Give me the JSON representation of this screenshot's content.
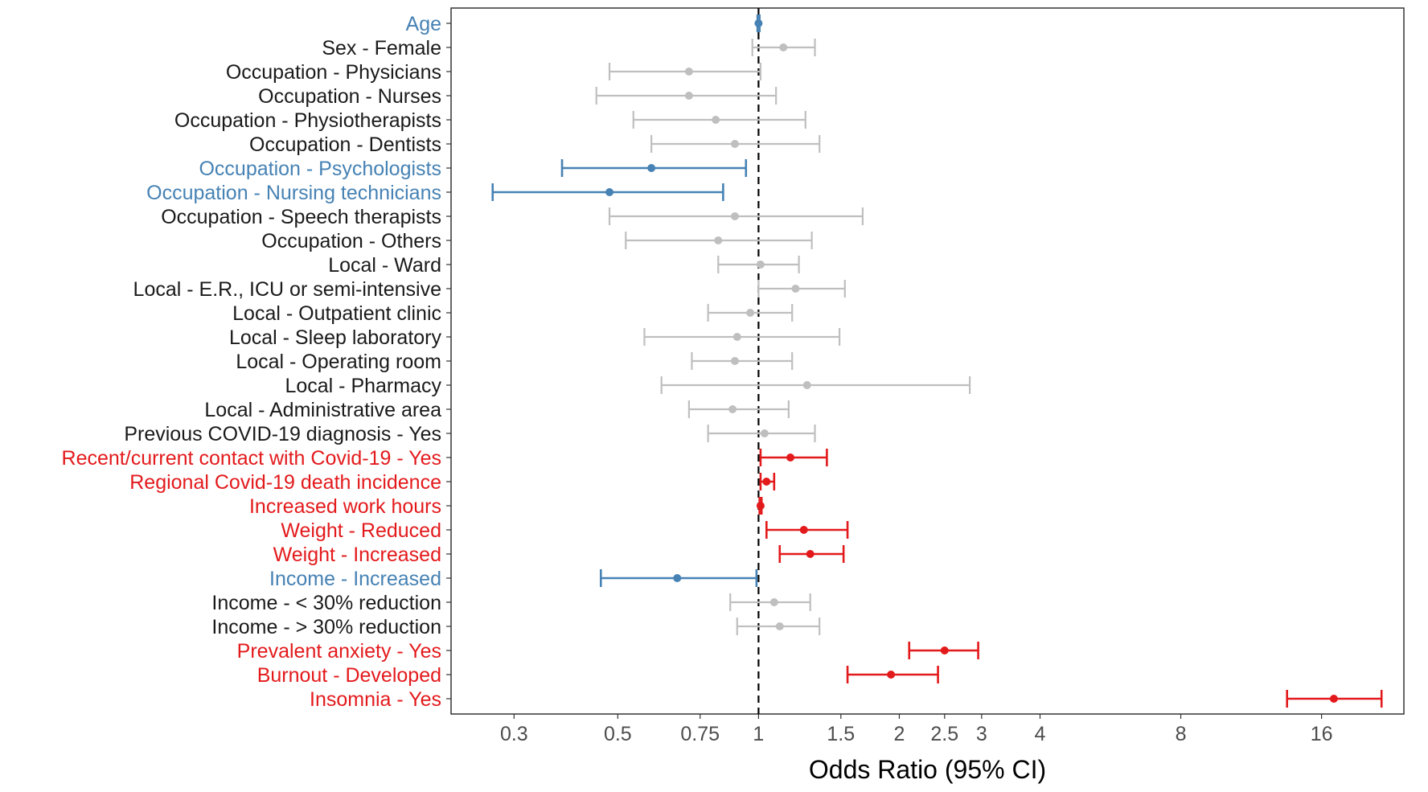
{
  "colors": {
    "significant_risk": "#e31a1c",
    "significant_protective": "#4682b4",
    "not_significant": "#bfbfbf",
    "not_significant_label": "#1a1a1a",
    "reference_line": "#000000",
    "panel_border": "#333333"
  },
  "chart_data": {
    "type": "forest",
    "xlabel": "Odds Ratio (95% CI)",
    "x_scale": "log",
    "xlim": [
      0.22,
      24
    ],
    "x_ticks": [
      0.3,
      0.5,
      0.75,
      1,
      1.5,
      2,
      2.5,
      3,
      4,
      8,
      16
    ],
    "x_tick_labels": [
      "0.3",
      "0.5",
      "0.75",
      "1",
      "1.5",
      "2",
      "2.5",
      "3",
      "4",
      "8",
      "16"
    ],
    "reference_line": 1,
    "grid": false,
    "rows": [
      {
        "label": "Age",
        "or": 1.0,
        "lo": 0.995,
        "hi": 1.005,
        "group": "significant_protective"
      },
      {
        "label": "Sex - Female",
        "or": 1.13,
        "lo": 0.97,
        "hi": 1.32,
        "group": "not_significant"
      },
      {
        "label": "Occupation - Physicians",
        "or": 0.71,
        "lo": 0.48,
        "hi": 1.01,
        "group": "not_significant"
      },
      {
        "label": "Occupation - Nurses",
        "or": 0.71,
        "lo": 0.45,
        "hi": 1.09,
        "group": "not_significant"
      },
      {
        "label": "Occupation - Physiotherapists",
        "or": 0.81,
        "lo": 0.54,
        "hi": 1.26,
        "group": "not_significant"
      },
      {
        "label": "Occupation - Dentists",
        "or": 0.89,
        "lo": 0.59,
        "hi": 1.35,
        "group": "not_significant"
      },
      {
        "label": "Occupation - Psychologists",
        "or": 0.59,
        "lo": 0.38,
        "hi": 0.94,
        "group": "significant_protective"
      },
      {
        "label": "Occupation - Nursing technicians",
        "or": 0.48,
        "lo": 0.27,
        "hi": 0.84,
        "group": "significant_protective"
      },
      {
        "label": "Occupation - Speech therapists",
        "or": 0.89,
        "lo": 0.48,
        "hi": 1.67,
        "group": "not_significant"
      },
      {
        "label": "Occupation - Others",
        "or": 0.82,
        "lo": 0.52,
        "hi": 1.3,
        "group": "not_significant"
      },
      {
        "label": "Local - Ward",
        "or": 1.01,
        "lo": 0.82,
        "hi": 1.22,
        "group": "not_significant"
      },
      {
        "label": "Local - E.R., ICU or semi-intensive",
        "or": 1.2,
        "lo": 1.0,
        "hi": 1.53,
        "group": "not_significant"
      },
      {
        "label": "Local - Outpatient clinic",
        "or": 0.96,
        "lo": 0.78,
        "hi": 1.18,
        "group": "not_significant"
      },
      {
        "label": "Local - Sleep laboratory",
        "or": 0.9,
        "lo": 0.57,
        "hi": 1.49,
        "group": "not_significant"
      },
      {
        "label": "Local - Operating room",
        "or": 0.89,
        "lo": 0.72,
        "hi": 1.18,
        "group": "not_significant"
      },
      {
        "label": "Local - Pharmacy",
        "or": 1.27,
        "lo": 0.62,
        "hi": 2.83,
        "group": "not_significant"
      },
      {
        "label": "Local - Administrative area",
        "or": 0.88,
        "lo": 0.71,
        "hi": 1.16,
        "group": "not_significant"
      },
      {
        "label": "Previous COVID-19 diagnosis - Yes",
        "or": 1.03,
        "lo": 0.78,
        "hi": 1.32,
        "group": "not_significant"
      },
      {
        "label": "Recent/current contact with Covid-19 - Yes",
        "or": 1.17,
        "lo": 1.01,
        "hi": 1.4,
        "group": "significant_risk"
      },
      {
        "label": "Regional Covid-19 death incidence",
        "or": 1.04,
        "lo": 1.01,
        "hi": 1.08,
        "group": "significant_risk"
      },
      {
        "label": "Increased work hours",
        "or": 1.01,
        "lo": 1.005,
        "hi": 1.015,
        "group": "significant_risk"
      },
      {
        "label": "Weight - Reduced",
        "or": 1.25,
        "lo": 1.04,
        "hi": 1.55,
        "group": "significant_risk"
      },
      {
        "label": "Weight - Increased",
        "or": 1.29,
        "lo": 1.11,
        "hi": 1.52,
        "group": "significant_risk"
      },
      {
        "label": "Income - Increased",
        "or": 0.67,
        "lo": 0.46,
        "hi": 0.99,
        "group": "significant_protective"
      },
      {
        "label": "Income - < 30% reduction",
        "or": 1.08,
        "lo": 0.87,
        "hi": 1.29,
        "group": "not_significant"
      },
      {
        "label": "Income - > 30% reduction",
        "or": 1.11,
        "lo": 0.9,
        "hi": 1.35,
        "group": "not_significant"
      },
      {
        "label": "Prevalent anxiety - Yes",
        "or": 2.5,
        "lo": 2.1,
        "hi": 2.95,
        "group": "significant_risk"
      },
      {
        "label": "Burnout - Developed",
        "or": 1.92,
        "lo": 1.55,
        "hi": 2.42,
        "group": "significant_risk"
      },
      {
        "label": "Insomnia - Yes",
        "or": 17.0,
        "lo": 13.5,
        "hi": 21.5,
        "group": "significant_risk"
      }
    ]
  }
}
